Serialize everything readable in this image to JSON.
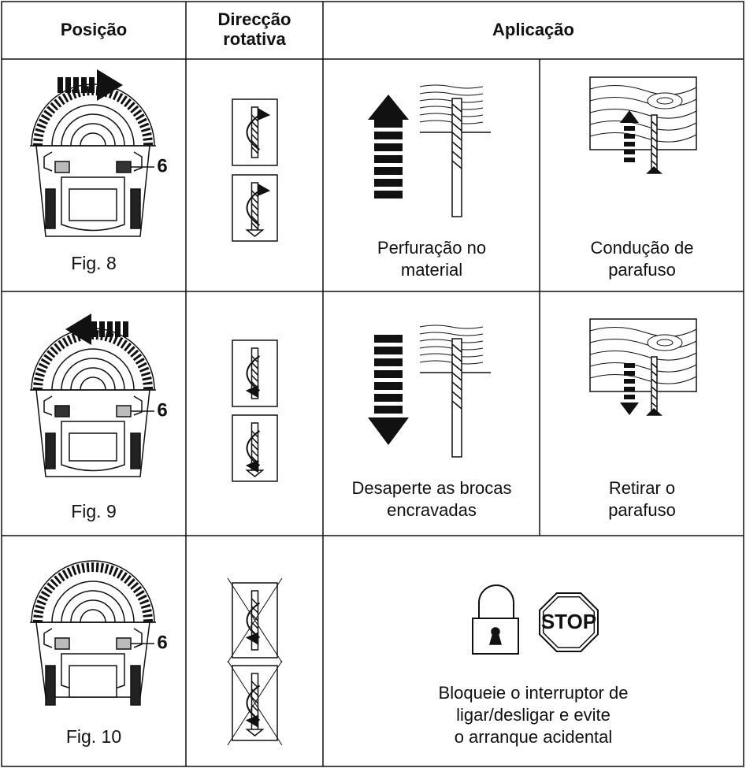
{
  "table": {
    "header": {
      "position": "Posição",
      "direction": [
        "Direcção",
        "rotativa"
      ],
      "application": "Aplicação"
    },
    "rows": [
      {
        "figure": "Fig. 8",
        "callout": "6",
        "applications": [
          {
            "lines": [
              "Perfuração no",
              "material"
            ]
          },
          {
            "lines": [
              "Condução de",
              "parafuso"
            ]
          }
        ]
      },
      {
        "figure": "Fig. 9",
        "callout": "6",
        "applications": [
          {
            "lines": [
              "Desaperte as brocas",
              "encravadas"
            ]
          },
          {
            "lines": [
              "Retirar o",
              "parafuso"
            ]
          }
        ]
      },
      {
        "figure": "Fig. 10",
        "callout": "6",
        "stop": "STOP",
        "applications": [
          {
            "lines": [
              "Bloqueie o interruptor de",
              "ligar/desligar e evite",
              "o arranque acidental"
            ]
          }
        ]
      }
    ]
  }
}
